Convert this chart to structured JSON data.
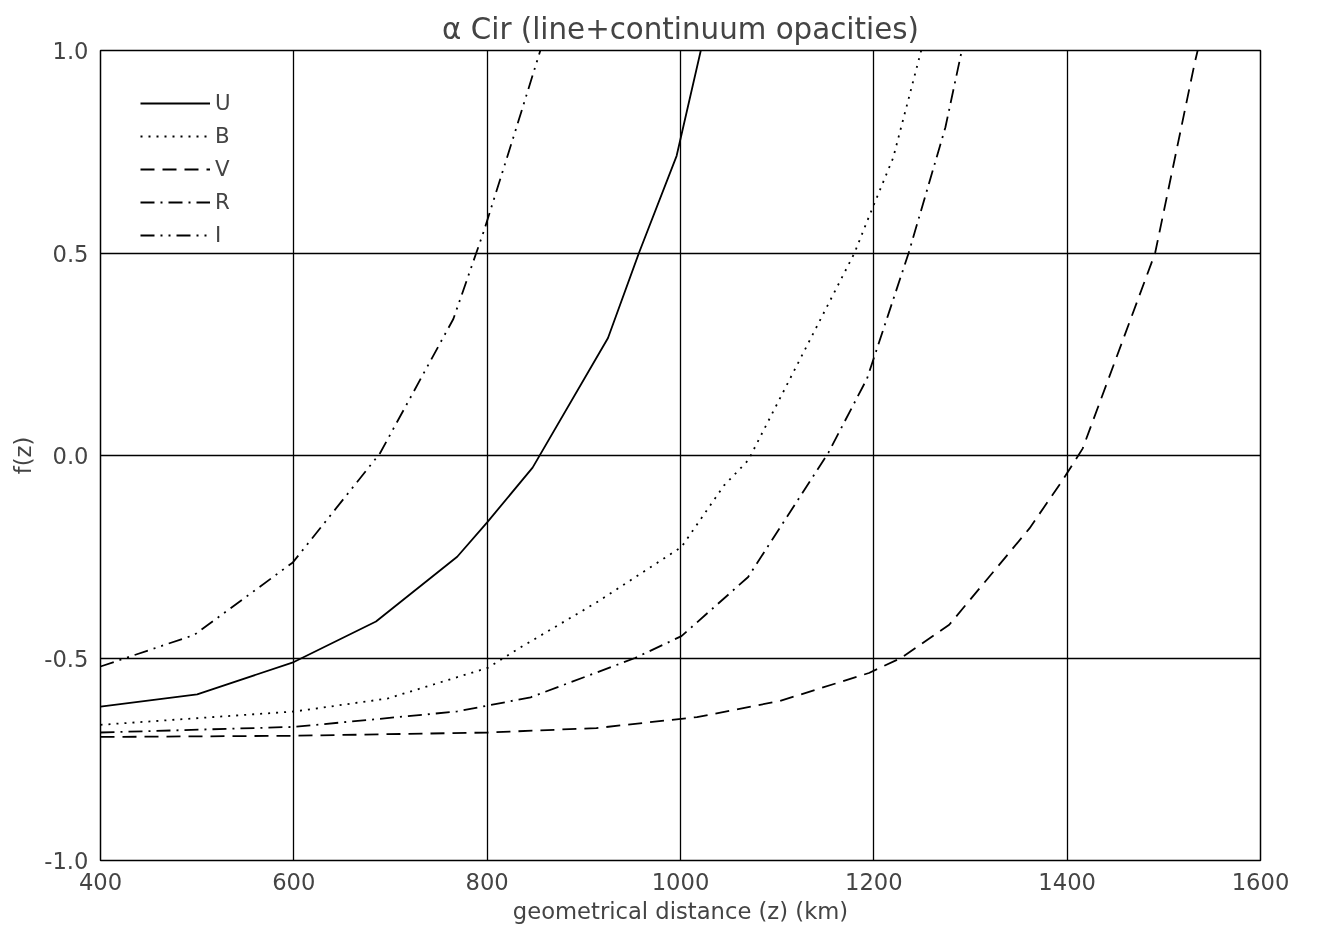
{
  "chart_data": {
    "type": "line",
    "title": "α Cir (line+continuum opacities)",
    "xlabel": "geometrical distance (z) (km)",
    "ylabel": "f(z)",
    "xlim": [
      400,
      1600
    ],
    "ylim": [
      -1.0,
      1.0
    ],
    "xticks": [
      400,
      600,
      800,
      1000,
      1200,
      1400,
      1600
    ],
    "yticks": [
      {
        "value": -1.0,
        "label": "-1.0"
      },
      {
        "value": -0.5,
        "label": "-0.5"
      },
      {
        "value": 0.0,
        "label": "0.0"
      },
      {
        "value": 0.5,
        "label": "0.5"
      },
      {
        "value": 1.0,
        "label": "1.0"
      }
    ],
    "grid": true,
    "legend": "top left",
    "marker": "none",
    "series": [
      {
        "name": "U",
        "color": "#000000",
        "line_style": "solid",
        "x": [
          400,
          500,
          600,
          685,
          769,
          800,
          847,
          925,
          957,
          996,
          1021
        ],
        "values": [
          -0.62,
          -0.59,
          -0.51,
          -0.41,
          -0.25,
          -0.165,
          -0.03,
          0.29,
          0.5,
          0.74,
          1.0
        ]
      },
      {
        "name": "B",
        "color": "#000000",
        "line_style": "dotted",
        "x": [
          400,
          601,
          697,
          801,
          833,
          913,
          1001,
          1045,
          1070,
          1180,
          1195,
          1220,
          1249
        ],
        "values": [
          -0.665,
          -0.632,
          -0.6,
          -0.524,
          -0.476,
          -0.363,
          -0.226,
          -0.074,
          -0.012,
          0.5,
          0.59,
          0.735,
          1.0
        ]
      },
      {
        "name": "V",
        "color": "#000000",
        "line_style": "dashed",
        "x": [
          400,
          601,
          801,
          913,
          1017,
          1103,
          1195,
          1228,
          1278,
          1361,
          1395,
          1416,
          1491,
          1532,
          1535
        ],
        "values": [
          -0.695,
          -0.692,
          -0.684,
          -0.673,
          -0.646,
          -0.606,
          -0.537,
          -0.5,
          -0.418,
          -0.18,
          -0.062,
          0.017,
          0.5,
          0.97,
          1.0
        ]
      },
      {
        "name": "R",
        "color": "#000000",
        "line_style": "dashdot",
        "x": [
          400,
          601,
          769,
          845,
          953,
          1001,
          1070,
          1153,
          1193,
          1236,
          1274,
          1291
        ],
        "values": [
          -0.684,
          -0.67,
          -0.632,
          -0.597,
          -0.5,
          -0.446,
          -0.3,
          0.007,
          0.19,
          0.5,
          0.81,
          1.0
        ]
      },
      {
        "name": "I",
        "color": "#000000",
        "line_style": "dashdotdot",
        "x": [
          400,
          497,
          599,
          689,
          765,
          797,
          829,
          855
        ],
        "values": [
          -0.521,
          -0.443,
          -0.264,
          0.005,
          0.337,
          0.557,
          0.8,
          1.0
        ]
      }
    ]
  }
}
